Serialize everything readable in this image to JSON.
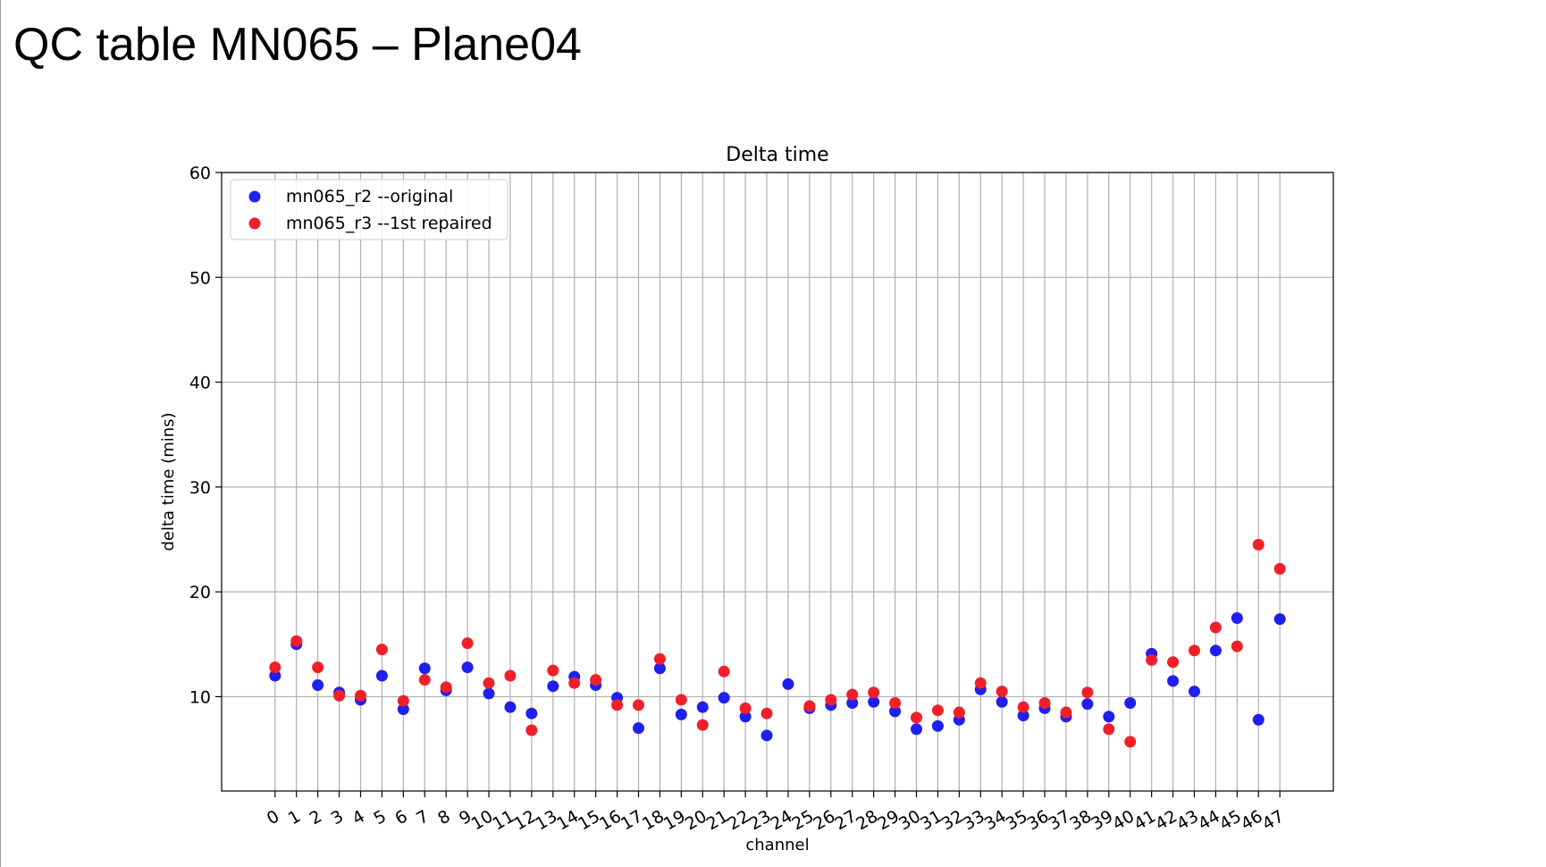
{
  "slide": {
    "title": "QC table MN065 – Plane04"
  },
  "colors": {
    "r2": "#1f1ff0",
    "r3": "#f01f2a",
    "grid": "#b0b0b0"
  },
  "chart_data": {
    "type": "scatter",
    "title": "Delta time",
    "xlabel": "channel",
    "ylabel": "delta time (mins)",
    "ylim": [
      1,
      60
    ],
    "yticks": [
      10,
      20,
      30,
      40,
      50,
      60
    ],
    "xlim": [
      -2.5,
      49.5
    ],
    "grid": true,
    "legend_position": "top-left",
    "categories": [
      "0",
      "1",
      "2",
      "3",
      "4",
      "5",
      "6",
      "7",
      "8",
      "9",
      "10",
      "11",
      "12",
      "13",
      "14",
      "15",
      "16",
      "17",
      "18",
      "19",
      "20",
      "21",
      "22",
      "23",
      "24",
      "25",
      "26",
      "27",
      "28",
      "29",
      "30",
      "31",
      "32",
      "33",
      "34",
      "35",
      "36",
      "37",
      "38",
      "39",
      "40",
      "41",
      "42",
      "43",
      "44",
      "45",
      "46",
      "47"
    ],
    "series": [
      {
        "name": "mn065_r2 --original",
        "color": "#1f1ff0",
        "values": [
          12.0,
          15.0,
          11.1,
          10.4,
          9.7,
          12.0,
          8.8,
          12.7,
          10.6,
          12.8,
          10.3,
          9.0,
          8.4,
          11.0,
          11.9,
          11.1,
          9.9,
          7.0,
          12.7,
          8.3,
          9.0,
          9.9,
          8.1,
          6.3,
          11.2,
          8.9,
          9.2,
          9.4,
          9.5,
          8.6,
          6.9,
          7.2,
          7.8,
          10.7,
          9.5,
          8.2,
          8.9,
          8.1,
          9.3,
          8.1,
          9.4,
          14.1,
          11.5,
          10.5,
          14.4,
          17.5,
          7.8,
          17.4
        ]
      },
      {
        "name": "mn065_r3 --1st repaired",
        "color": "#f01f2a",
        "values": [
          12.8,
          15.3,
          12.8,
          10.1,
          10.1,
          14.5,
          9.6,
          11.6,
          10.9,
          15.1,
          11.3,
          12.0,
          6.8,
          12.5,
          11.3,
          11.6,
          9.2,
          9.2,
          13.6,
          9.7,
          7.3,
          12.4,
          8.9,
          8.4,
          null,
          9.1,
          9.7,
          10.2,
          10.4,
          9.4,
          8.0,
          8.7,
          8.5,
          11.3,
          10.5,
          9.0,
          9.4,
          8.5,
          10.4,
          6.9,
          5.7,
          13.5,
          13.3,
          14.4,
          16.6,
          14.8,
          24.5,
          22.2
        ]
      }
    ]
  }
}
